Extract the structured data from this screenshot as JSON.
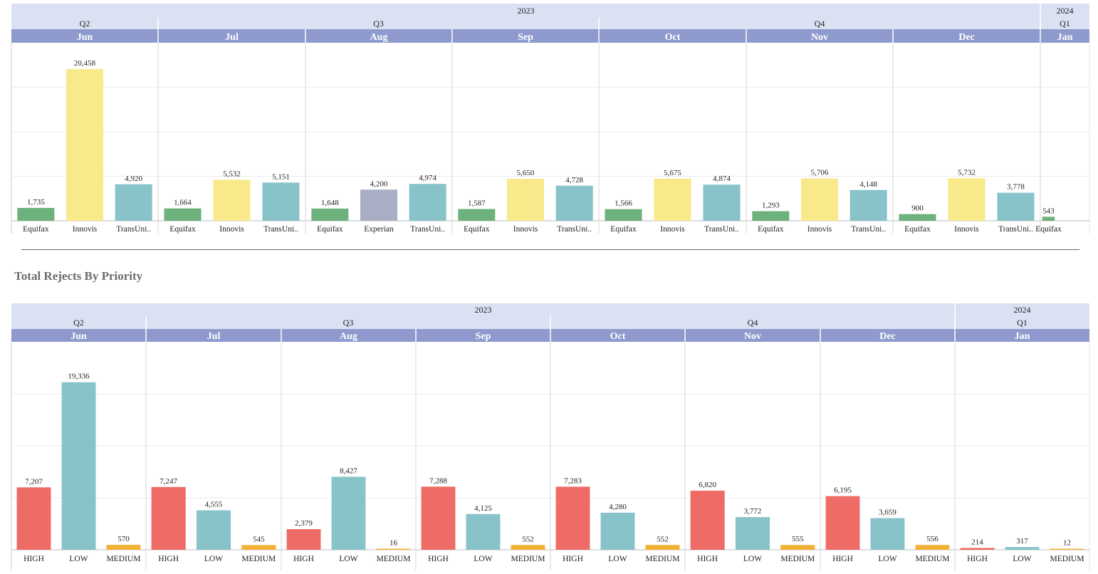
{
  "section_title": "Total Rejects By Priority",
  "colors": {
    "header_light": "#d9e1f2",
    "header_dark": "#8e9ace",
    "Equifax": "#6db17c",
    "Innovis": "#f8e98a",
    "TransUni..": "#87c3c9",
    "Experian": "#a9aec4",
    "HIGH": "#ef6b66",
    "LOW": "#87c3c9",
    "MEDIUM": "#f2b134"
  },
  "chart_data": [
    {
      "type": "bar",
      "ylim": [
        0,
        24000
      ],
      "years": [
        {
          "label": "2023",
          "span": 7
        },
        {
          "label": "2024",
          "span": 1
        }
      ],
      "quarters": [
        {
          "label": "Q2",
          "span": 1
        },
        {
          "label": "Q3",
          "span": 3
        },
        {
          "label": "Q4",
          "span": 3
        },
        {
          "label": "Q1",
          "span": 1
        }
      ],
      "months": [
        {
          "label": "Jun",
          "bars": [
            {
              "category": "Equifax",
              "value": 1735,
              "label": "1,735"
            },
            {
              "category": "Innovis",
              "value": 20458,
              "label": "20,458"
            },
            {
              "category": "TransUni..",
              "value": 4920,
              "label": "4,920"
            }
          ]
        },
        {
          "label": "Jul",
          "bars": [
            {
              "category": "Equifax",
              "value": 1664,
              "label": "1,664"
            },
            {
              "category": "Innovis",
              "value": 5532,
              "label": "5,532"
            },
            {
              "category": "TransUni..",
              "value": 5151,
              "label": "5,151"
            }
          ]
        },
        {
          "label": "Aug",
          "bars": [
            {
              "category": "Equifax",
              "value": 1648,
              "label": "1,648"
            },
            {
              "category": "Experian",
              "value": 4200,
              "label": "4,200"
            },
            {
              "category": "TransUni..",
              "value": 4974,
              "label": "4,974"
            }
          ]
        },
        {
          "label": "Sep",
          "bars": [
            {
              "category": "Equifax",
              "value": 1587,
              "label": "1,587"
            },
            {
              "category": "Innovis",
              "value": 5650,
              "label": "5,650"
            },
            {
              "category": "TransUni..",
              "value": 4728,
              "label": "4,728"
            }
          ]
        },
        {
          "label": "Oct",
          "bars": [
            {
              "category": "Equifax",
              "value": 1566,
              "label": "1,566"
            },
            {
              "category": "Innovis",
              "value": 5675,
              "label": "5,675"
            },
            {
              "category": "TransUni..",
              "value": 4874,
              "label": "4,874"
            }
          ]
        },
        {
          "label": "Nov",
          "bars": [
            {
              "category": "Equifax",
              "value": 1293,
              "label": "1,293"
            },
            {
              "category": "Innovis",
              "value": 5706,
              "label": "5,706"
            },
            {
              "category": "TransUni..",
              "value": 4148,
              "label": "4,148"
            }
          ]
        },
        {
          "label": "Dec",
          "bars": [
            {
              "category": "Equifax",
              "value": 900,
              "label": "900"
            },
            {
              "category": "Innovis",
              "value": 5732,
              "label": "5,732"
            },
            {
              "category": "TransUni..",
              "value": 3778,
              "label": "3,778"
            }
          ]
        },
        {
          "label": "Jan",
          "bars": [
            {
              "category": "Equifax",
              "value": 543,
              "label": "543"
            }
          ]
        }
      ]
    },
    {
      "type": "bar",
      "title": "Total Rejects By Priority",
      "ylim": [
        0,
        24000
      ],
      "years": [
        {
          "label": "2023",
          "span": 7
        },
        {
          "label": "2024",
          "span": 1
        }
      ],
      "quarters": [
        {
          "label": "Q2",
          "span": 1
        },
        {
          "label": "Q3",
          "span": 3
        },
        {
          "label": "Q4",
          "span": 3
        },
        {
          "label": "Q1",
          "span": 1
        }
      ],
      "months": [
        {
          "label": "Jun",
          "bars": [
            {
              "category": "HIGH",
              "value": 7207,
              "label": "7,207"
            },
            {
              "category": "LOW",
              "value": 19336,
              "label": "19,336"
            },
            {
              "category": "MEDIUM",
              "value": 570,
              "label": "570"
            }
          ]
        },
        {
          "label": "Jul",
          "bars": [
            {
              "category": "HIGH",
              "value": 7247,
              "label": "7,247"
            },
            {
              "category": "LOW",
              "value": 4555,
              "label": "4,555"
            },
            {
              "category": "MEDIUM",
              "value": 545,
              "label": "545"
            }
          ]
        },
        {
          "label": "Aug",
          "bars": [
            {
              "category": "HIGH",
              "value": 2379,
              "label": "2,379"
            },
            {
              "category": "LOW",
              "value": 8427,
              "label": "8,427"
            },
            {
              "category": "MEDIUM",
              "value": 16,
              "label": "16"
            }
          ]
        },
        {
          "label": "Sep",
          "bars": [
            {
              "category": "HIGH",
              "value": 7288,
              "label": "7,288"
            },
            {
              "category": "LOW",
              "value": 4125,
              "label": "4,125"
            },
            {
              "category": "MEDIUM",
              "value": 552,
              "label": "552"
            }
          ]
        },
        {
          "label": "Oct",
          "bars": [
            {
              "category": "HIGH",
              "value": 7283,
              "label": "7,283"
            },
            {
              "category": "LOW",
              "value": 4280,
              "label": "4,280"
            },
            {
              "category": "MEDIUM",
              "value": 552,
              "label": "552"
            }
          ]
        },
        {
          "label": "Nov",
          "bars": [
            {
              "category": "HIGH",
              "value": 6820,
              "label": "6,820"
            },
            {
              "category": "LOW",
              "value": 3772,
              "label": "3,772"
            },
            {
              "category": "MEDIUM",
              "value": 555,
              "label": "555"
            }
          ]
        },
        {
          "label": "Dec",
          "bars": [
            {
              "category": "HIGH",
              "value": 6195,
              "label": "6,195"
            },
            {
              "category": "LOW",
              "value": 3659,
              "label": "3,659"
            },
            {
              "category": "MEDIUM",
              "value": 556,
              "label": "556"
            }
          ]
        },
        {
          "label": "Jan",
          "bars": [
            {
              "category": "HIGH",
              "value": 214,
              "label": "214"
            },
            {
              "category": "LOW",
              "value": 317,
              "label": "317"
            },
            {
              "category": "MEDIUM",
              "value": 12,
              "label": "12"
            }
          ]
        }
      ]
    }
  ]
}
